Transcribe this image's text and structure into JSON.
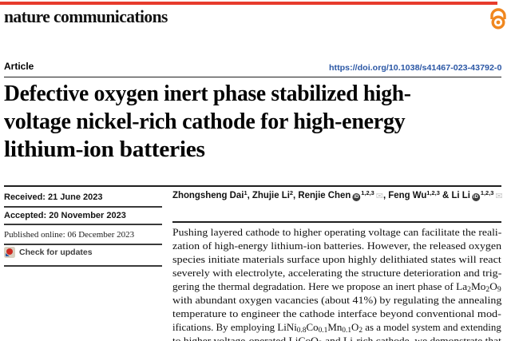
{
  "masthead": {
    "journal": "nature communications"
  },
  "article_bar": {
    "kicker": "Article",
    "doi": "https://doi.org/10.1038/s41467-023-43792-0"
  },
  "title_lines": [
    "Defective oxygen inert phase stabilized high-",
    "voltage nickel-rich cathode for high-energy",
    "lithium-ion batteries"
  ],
  "meta": {
    "received": "Received: 21 June 2023",
    "accepted": "Accepted: 20 November 2023",
    "published": "Published online: 06 December 2023",
    "check_updates": "Check for updates"
  },
  "authors": {
    "segments": [
      {
        "text": "Zhongsheng Dai"
      },
      {
        "text": "1",
        "sup": true
      },
      {
        "text": ", Zhujie Li"
      },
      {
        "text": "2",
        "sup": true
      },
      {
        "text": ", Renjie Chen"
      },
      {
        "icon": "orcid-icon"
      },
      {
        "text": "1,2,3",
        "sup": true
      },
      {
        "icon": "envelope-icon"
      },
      {
        "text": ", Feng Wu"
      },
      {
        "text": "1,2,3",
        "sup": true
      },
      {
        "text": " & Li Li"
      },
      {
        "icon": "orcid-icon"
      },
      {
        "text": "1,2,3",
        "sup": true
      },
      {
        "icon": "envelope-icon"
      }
    ]
  },
  "abstract": {
    "lines": [
      [
        {
          "text": "Pushing layered cathode to higher operating voltage can facilitate the reali-"
        }
      ],
      [
        {
          "text": "zation of high-energy lithium-ion batteries. However, the released oxygen"
        }
      ],
      [
        {
          "text": "species initiate materials surface upon highly delithiated states will react"
        }
      ],
      [
        {
          "text": "severely with electrolyte, accelerating the structure deterioration and trig-"
        }
      ],
      [
        {
          "text": "gering the thermal degradation. Here we propose an inert phase of La"
        },
        {
          "text": "2",
          "sub": true
        },
        {
          "text": "Mo"
        },
        {
          "text": "2",
          "sub": true
        },
        {
          "text": "O"
        },
        {
          "text": "9",
          "sub": true
        }
      ],
      [
        {
          "text": "with abundant oxygen vacancies (about 41%) by regulating the annealing"
        }
      ],
      [
        {
          "text": "temperature to engineer the cathode interface beyond conventional mod-"
        }
      ],
      [
        {
          "text": "ifications. By employing LiNi"
        },
        {
          "text": "0.8",
          "sub": true
        },
        {
          "text": "Co"
        },
        {
          "text": "0.1",
          "sub": true
        },
        {
          "text": "Mn"
        },
        {
          "text": "0.1",
          "sub": true
        },
        {
          "text": "O"
        },
        {
          "text": "2",
          "sub": true
        },
        {
          "text": " as a model system and extending"
        }
      ],
      [
        {
          "text": "to higher voltage-operated LiCoO"
        },
        {
          "text": "2",
          "sub": true
        },
        {
          "text": " and Li-rich cathode, we demonstrate that"
        }
      ]
    ]
  },
  "icons": {
    "masthead_right": "open-access-icon",
    "author_identifier": "orcid-icon",
    "corresponding_author": "envelope-icon",
    "update_badge": "crossmark-icon"
  },
  "colors": {
    "accent_red": "#e73b2c",
    "open_access_orange": "#f0871f",
    "link_blue": "#2b57a5",
    "rule_dark": "#1f1f1f",
    "text_black": "#0a0a0a",
    "badge_text": "#3f3f3f",
    "envelope_gray": "#c6c6c6"
  }
}
